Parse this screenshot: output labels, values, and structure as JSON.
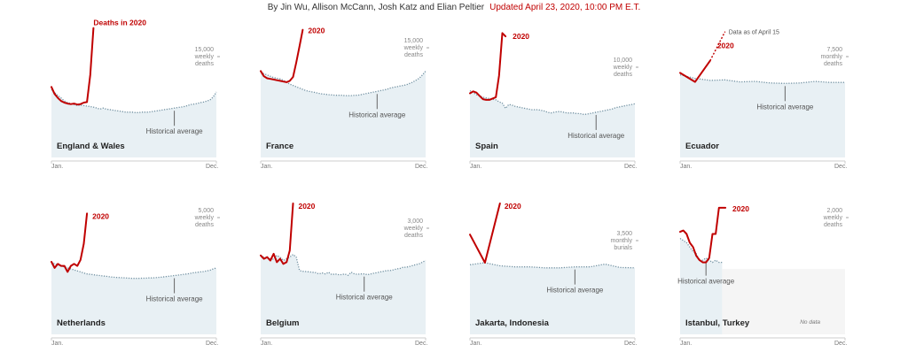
{
  "byline": {
    "authors": "By Jin Wu, Allison McCann, Josh Katz and Elian Peltier",
    "updated": "Updated April 23, 2020, 10:00 PM E.T."
  },
  "colors": {
    "deaths": "#c00000",
    "historical": "#6f8fa0",
    "fill": "#e8f0f4",
    "nodata": "#f5f5f5",
    "axis": "#cccccc",
    "text": "#222222",
    "muted": "#777777"
  },
  "labels": {
    "start": "Jan.",
    "end": "Dec.",
    "historical": "Historical average"
  },
  "chart_data": [
    {
      "type": "line",
      "title": "England & Wales",
      "unit_label": "15,000\nweekly\ndeaths",
      "series_label": "Deaths in 2020",
      "x_range": [
        1,
        52
      ],
      "ylim": [
        0,
        26000
      ],
      "unit_value": 15000,
      "historical": [
        13500,
        12900,
        12300,
        11800,
        11200,
        10900,
        10700,
        10500,
        10300,
        10400,
        10300,
        10200,
        10100,
        10000,
        9800,
        9600,
        9800,
        9600,
        9500,
        9400,
        9300,
        9200,
        9100,
        9000,
        9000,
        9000,
        8900,
        8900,
        9000,
        9000,
        9000,
        9100,
        9200,
        9300,
        9400,
        9500,
        9600,
        9700,
        9800,
        9900,
        10000,
        10100,
        10300,
        10500,
        10600,
        10700,
        10900,
        11000,
        11200,
        11400,
        12000,
        13000
      ],
      "deaths": {
        "start_week": 1,
        "values": [
          14000,
          12600,
          11800,
          11200,
          10900,
          10700,
          10600,
          10700,
          10500,
          10600,
          10900,
          11000,
          16400,
          25700
        ]
      },
      "historical_marker_week": 39,
      "data_note": ""
    },
    {
      "type": "line",
      "title": "France",
      "unit_label": "15,000\nweekly\ndeaths",
      "series_label": "2020",
      "x_range": [
        1,
        52
      ],
      "ylim": [
        0,
        20000
      ],
      "unit_value": 15000,
      "historical": [
        13000,
        12800,
        12600,
        12400,
        12200,
        12100,
        12000,
        11800,
        11500,
        11200,
        11000,
        10800,
        10600,
        10400,
        10200,
        10100,
        10000,
        9900,
        9800,
        9700,
        9650,
        9600,
        9550,
        9500,
        9500,
        9500,
        9450,
        9450,
        9450,
        9500,
        9500,
        9600,
        9700,
        9800,
        9900,
        10000,
        10100,
        10200,
        10300,
        10400,
        10600,
        10700,
        10800,
        10900,
        11000,
        11100,
        11300,
        11500,
        11800,
        12100,
        12600,
        13200
      ],
      "deaths": {
        "start_week": 1,
        "values": [
          13200,
          12400,
          12100,
          12000,
          11900,
          11800,
          11700,
          11600,
          11500,
          11700,
          12300,
          14500,
          17000,
          19500
        ]
      },
      "historical_marker_week": 37,
      "data_note": ""
    },
    {
      "type": "line",
      "title": "Spain",
      "unit_label": "10,000\nweekly\ndeaths",
      "series_label": "2020",
      "x_range": [
        1,
        52
      ],
      "ylim": [
        0,
        20000
      ],
      "unit_value": 10000,
      "historical": [
        10200,
        9900,
        9600,
        9400,
        9200,
        9100,
        9000,
        8900,
        8800,
        8500,
        8300,
        7500,
        8100,
        8000,
        7800,
        7700,
        7600,
        7500,
        7400,
        7300,
        7300,
        7300,
        7200,
        7100,
        6900,
        6800,
        6900,
        7000,
        7000,
        6900,
        6800,
        6800,
        6800,
        6700,
        6700,
        6600,
        6600,
        6700,
        6800,
        6900,
        7000,
        7100,
        7200,
        7300,
        7400,
        7600,
        7700,
        7800,
        7900,
        8000,
        8100,
        8200
      ],
      "deaths": {
        "start_week": 1,
        "values": [
          9800,
          10100,
          9900,
          9400,
          8900,
          8800,
          8800,
          9000,
          9200,
          12500,
          19000,
          18500
        ]
      },
      "historical_marker_week": 40,
      "data_note": ""
    },
    {
      "type": "line",
      "title": "Ecuador",
      "unit_label": "7,500\nmonthly\ndeaths",
      "series_label": "2020",
      "x_range": [
        1,
        12
      ],
      "ylim": [
        0,
        13000
      ],
      "unit_value": 7500,
      "historical": [
        8200,
        7850,
        7650,
        7700,
        7500,
        7550,
        7400,
        7350,
        7400,
        7550,
        7450,
        7450
      ],
      "deaths": {
        "start_week": 1,
        "values": [
          8400,
          7500,
          9600
        ]
      },
      "dashed": {
        "start_week": 3,
        "values": [
          9600,
          12500
        ]
      },
      "historical_marker_week": 8,
      "data_note": "Data as of April 15"
    },
    {
      "type": "line",
      "title": "Netherlands",
      "unit_label": "5,000\nweekly\ndeaths",
      "series_label": "2020",
      "x_range": [
        1,
        52
      ],
      "ylim": [
        0,
        6500
      ],
      "unit_value": 5000,
      "historical": [
        3600,
        3500,
        3450,
        3400,
        3350,
        3300,
        3250,
        3200,
        3150,
        3100,
        3050,
        3000,
        2980,
        2960,
        2940,
        2920,
        2900,
        2880,
        2860,
        2840,
        2830,
        2820,
        2810,
        2800,
        2790,
        2780,
        2780,
        2780,
        2790,
        2790,
        2800,
        2800,
        2810,
        2830,
        2840,
        2860,
        2880,
        2900,
        2920,
        2940,
        2960,
        2980,
        3000,
        3030,
        3060,
        3080,
        3100,
        3120,
        3150,
        3180,
        3250,
        3300
      ],
      "deaths": {
        "start_week": 1,
        "values": [
          3600,
          3300,
          3500,
          3400,
          3400,
          3100,
          3400,
          3500,
          3400,
          3700,
          4500,
          6000
        ]
      },
      "historical_marker_week": 39,
      "data_note": ""
    },
    {
      "type": "line",
      "title": "Belgium",
      "unit_label": "3,000\nweekly\ndeaths",
      "series_label": "2020",
      "x_range": [
        1,
        52
      ],
      "ylim": [
        0,
        3900
      ],
      "unit_value": 3000,
      "historical": [
        2350,
        2300,
        2270,
        2250,
        2240,
        2350,
        2300,
        2200,
        2250,
        2300,
        2380,
        2300,
        1900,
        1880,
        1870,
        1860,
        1850,
        1840,
        1800,
        1830,
        1800,
        1850,
        1780,
        1800,
        1780,
        1780,
        1800,
        1760,
        1850,
        1800,
        1790,
        1800,
        1800,
        1780,
        1800,
        1820,
        1840,
        1860,
        1880,
        1900,
        1900,
        1920,
        1950,
        1960,
        2000,
        2000,
        2020,
        2050,
        2080,
        2100,
        2150,
        2200
      ],
      "deaths": {
        "start_week": 1,
        "values": [
          2350,
          2250,
          2300,
          2200,
          2400,
          2150,
          2250,
          2100,
          2150,
          2500,
          3900
        ]
      },
      "historical_marker_week": 33,
      "data_note": ""
    },
    {
      "type": "line",
      "title": "Jakarta, Indonesia",
      "unit_label": "3,500\nmonthly\nburials",
      "series_label": "2020",
      "x_range": [
        1,
        12
      ],
      "ylim": [
        0,
        6300
      ],
      "unit_value": 3500,
      "historical": [
        3350,
        3450,
        3300,
        3250,
        3250,
        3200,
        3200,
        3250,
        3250,
        3380,
        3220,
        3200
      ],
      "deaths": {
        "start_week": 1,
        "values": [
          4800,
          3450,
          6300
        ]
      },
      "historical_marker_week": 8,
      "data_note": ""
    },
    {
      "type": "line",
      "title": "Istanbul, Turkey",
      "unit_label": "2,000\nweekly\ndeaths",
      "series_label": "2020",
      "x_range": [
        1,
        52
      ],
      "ylim": [
        0,
        3000
      ],
      "unit_value": 2000,
      "historical": [
        2200,
        2150,
        2100,
        2000,
        1900,
        1850,
        1700,
        1700,
        1750,
        1700,
        1650,
        1700,
        1650,
        1650
      ],
      "deaths": {
        "start_week": 1,
        "values": [
          2350,
          2380,
          2300,
          2100,
          2000,
          1800,
          1700,
          1650,
          1650,
          1750,
          2300,
          2300,
          2900,
          2900,
          2900
        ]
      },
      "historical_marker_week": 9,
      "data_note": "No data"
    }
  ]
}
